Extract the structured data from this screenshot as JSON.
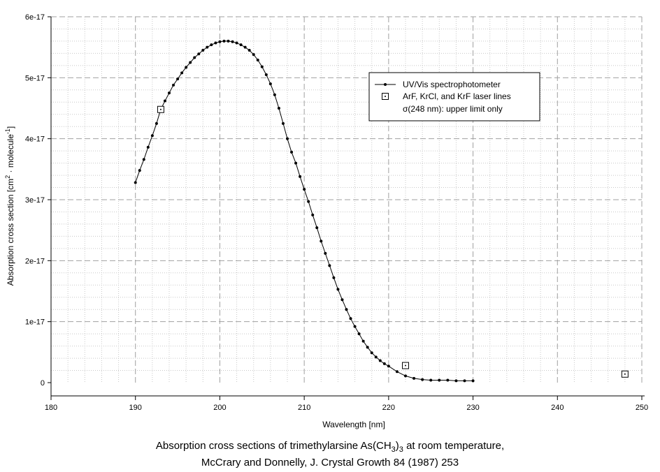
{
  "chart_data": {
    "type": "scatter",
    "xlabel": "Wavelength [nm]",
    "ylabel": "Absorption cross section [cm",
    "ylabel_sup": "2",
    "ylabel_mid": " · molecule",
    "ylabel_sup2": "-1",
    "ylabel_end": "]",
    "xlim": [
      180,
      250
    ],
    "ylim": [
      0,
      6e-17
    ],
    "xticks": [
      180,
      190,
      200,
      210,
      220,
      230,
      240,
      250
    ],
    "xtick_labels": [
      "180",
      "190",
      "200",
      "210",
      "220",
      "230",
      "240",
      "250"
    ],
    "yticks": [
      0,
      1e-17,
      2e-17,
      3e-17,
      4e-17,
      5e-17,
      6e-17
    ],
    "ytick_labels": [
      "0",
      "1e-17",
      "2e-17",
      "3e-17",
      "4e-17",
      "5e-17",
      "6e-17"
    ],
    "grid": true,
    "legend_position": "top-right",
    "legend": [
      {
        "label": "UV/Vis spectrophotometer"
      },
      {
        "label": "ArF, KrCl, and KrF laser lines"
      },
      {
        "label": "σ(248 nm): upper limit only"
      }
    ],
    "series": [
      {
        "name": "UV/Vis spectrophotometer",
        "color": "#000000",
        "x": [
          190.0,
          190.5,
          191.0,
          191.5,
          192.0,
          192.5,
          193.0,
          193.5,
          194.0,
          194.5,
          195.0,
          195.5,
          196.0,
          196.5,
          197.0,
          197.5,
          198.0,
          198.5,
          199.0,
          199.5,
          200.0,
          200.5,
          201.0,
          201.5,
          202.0,
          202.5,
          203.0,
          203.5,
          204.0,
          204.5,
          205.0,
          205.5,
          206.0,
          206.5,
          207.0,
          207.5,
          208.0,
          208.5,
          209.0,
          209.5,
          210.0,
          210.5,
          211.0,
          211.5,
          212.0,
          212.5,
          213.0,
          213.5,
          214.0,
          214.5,
          215.0,
          215.5,
          216.0,
          216.5,
          217.0,
          217.5,
          218.0,
          218.5,
          219.0,
          219.5,
          220.0,
          221.0,
          222.0,
          223.0,
          224.0,
          225.0,
          226.0,
          227.0,
          228.0,
          229.0,
          230.0
        ],
        "y": [
          3.28e-17,
          3.48e-17,
          3.66e-17,
          3.86e-17,
          4.05e-17,
          4.25e-17,
          4.48e-17,
          4.62e-17,
          4.75e-17,
          4.88e-17,
          4.98e-17,
          5.08e-17,
          5.17e-17,
          5.25e-17,
          5.33e-17,
          5.39e-17,
          5.45e-17,
          5.5e-17,
          5.54e-17,
          5.57e-17,
          5.59e-17,
          5.6e-17,
          5.6e-17,
          5.59e-17,
          5.57e-17,
          5.54e-17,
          5.5e-17,
          5.45e-17,
          5.38e-17,
          5.29e-17,
          5.18e-17,
          5.05e-17,
          4.9e-17,
          4.72e-17,
          4.5e-17,
          4.25e-17,
          4e-17,
          3.78e-17,
          3.6e-17,
          3.38e-17,
          3.17e-17,
          2.97e-17,
          2.75e-17,
          2.54e-17,
          2.32e-17,
          2.12e-17,
          1.92e-17,
          1.72e-17,
          1.53e-17,
          1.36e-17,
          1.2e-17,
          1.05e-17,
          9.2e-18,
          8e-18,
          6.8e-18,
          5.8e-18,
          4.9e-18,
          4.2e-18,
          3.6e-18,
          3.1e-18,
          2.7e-18,
          1.8e-18,
          1.1e-18,
          7e-19,
          5e-19,
          4e-19,
          4e-19,
          4e-19,
          3e-19,
          3e-19,
          3e-19
        ]
      },
      {
        "name": "ArF, KrCl, and KrF laser lines",
        "color": "#000000",
        "x": [
          193,
          222,
          248
        ],
        "y": [
          4.48e-17,
          2.8e-18,
          1.4e-18
        ]
      }
    ]
  },
  "caption": {
    "line1_a": "Absorption cross sections of trimethylarsine As(CH",
    "line1_sub1": "3",
    "line1_b": ")",
    "line1_sub2": "3",
    "line1_c": " at room temperature,",
    "line2": "McCrary and Donnelly, J. Crystal Growth 84 (1987) 253"
  }
}
